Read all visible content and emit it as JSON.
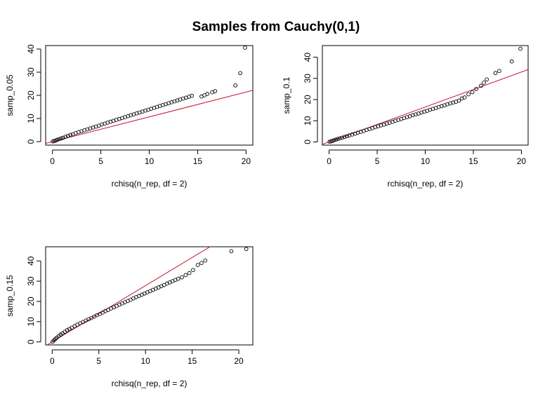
{
  "title": "Samples from Cauchy(0,1)",
  "colors": {
    "points": "#000000",
    "line": "#c8102e",
    "frame": "#000000"
  },
  "chart_data": [
    {
      "type": "scatter",
      "xlabel": "rchisq(n_rep, df = 2)",
      "ylabel": "samp_0.05",
      "xlim": [
        -0.7,
        20.7
      ],
      "ylim": [
        -1.5,
        41.5
      ],
      "xticks": [
        0,
        5,
        10,
        15,
        20
      ],
      "yticks": [
        0,
        10,
        20,
        30,
        40
      ],
      "points_x": [
        0.05,
        0.2,
        0.35,
        0.5,
        0.7,
        0.9,
        1.1,
        1.35,
        1.6,
        1.85,
        2.1,
        2.4,
        2.7,
        3.0,
        3.3,
        3.6,
        3.9,
        4.2,
        4.5,
        4.8,
        5.1,
        5.4,
        5.7,
        6.0,
        6.3,
        6.6,
        6.9,
        7.2,
        7.5,
        7.8,
        8.1,
        8.4,
        8.7,
        9.0,
        9.3,
        9.6,
        9.9,
        10.2,
        10.5,
        10.8,
        11.1,
        11.4,
        11.7,
        12.0,
        12.3,
        12.6,
        12.9,
        13.2,
        13.5,
        13.8,
        14.1,
        14.4,
        15.4,
        15.7,
        16.0,
        16.5,
        16.8,
        18.9,
        19.4,
        19.9
      ],
      "points_y": [
        0.1,
        0.3,
        0.5,
        0.8,
        1.1,
        1.4,
        1.7,
        2.1,
        2.5,
        2.9,
        3.2,
        3.7,
        4.1,
        4.5,
        4.9,
        5.3,
        5.7,
        6.1,
        6.5,
        6.9,
        7.4,
        7.8,
        8.2,
        8.6,
        9.0,
        9.4,
        9.8,
        10.2,
        10.6,
        11.0,
        11.4,
        11.8,
        12.2,
        12.6,
        13.0,
        13.4,
        13.8,
        14.2,
        14.6,
        15.0,
        15.4,
        15.8,
        16.2,
        16.6,
        17.0,
        17.4,
        17.8,
        18.2,
        18.6,
        19.0,
        19.4,
        19.8,
        19.5,
        20.0,
        20.6,
        21.3,
        21.8,
        24.3,
        29.6,
        40.6
      ],
      "ref_line": {
        "intercept": 0,
        "slope": 1.07
      }
    },
    {
      "type": "scatter",
      "xlabel": "rchisq(n_rep, df = 2)",
      "ylabel": "samp_0.1",
      "xlim": [
        -0.7,
        20.7
      ],
      "ylim": [
        -1.5,
        45.5
      ],
      "xticks": [
        0,
        5,
        10,
        15,
        20
      ],
      "yticks": [
        0,
        10,
        20,
        30,
        40
      ],
      "points_x": [
        0.05,
        0.2,
        0.35,
        0.5,
        0.7,
        0.9,
        1.1,
        1.35,
        1.6,
        1.85,
        2.1,
        2.4,
        2.7,
        3.0,
        3.3,
        3.6,
        3.9,
        4.2,
        4.5,
        4.8,
        5.1,
        5.4,
        5.7,
        6.0,
        6.3,
        6.6,
        6.9,
        7.2,
        7.5,
        7.8,
        8.1,
        8.4,
        8.7,
        9.0,
        9.3,
        9.6,
        9.9,
        10.2,
        10.5,
        10.8,
        11.1,
        11.4,
        11.7,
        12.0,
        12.3,
        12.6,
        12.9,
        13.2,
        13.5,
        13.8,
        14.1,
        14.5,
        14.9,
        15.3,
        15.8,
        16.1,
        16.4,
        17.3,
        17.7,
        19.0,
        19.9
      ],
      "points_y": [
        0.1,
        0.3,
        0.5,
        0.8,
        1.1,
        1.4,
        1.7,
        2.0,
        2.4,
        2.7,
        3.1,
        3.5,
        3.9,
        4.4,
        4.8,
        5.2,
        5.7,
        6.1,
        6.5,
        7.0,
        7.4,
        7.8,
        8.2,
        8.7,
        9.1,
        9.5,
        10.0,
        10.4,
        10.8,
        11.3,
        11.7,
        12.1,
        12.6,
        13.0,
        13.4,
        13.9,
        14.3,
        14.7,
        15.2,
        15.6,
        16.0,
        16.5,
        16.9,
        17.3,
        17.8,
        18.2,
        18.6,
        19.0,
        19.5,
        20.5,
        21.0,
        22.5,
        23.5,
        25.0,
        26.5,
        28.0,
        29.5,
        32.5,
        33.5,
        38.0,
        44.0
      ],
      "ref_line": {
        "intercept": 0,
        "slope": 1.65
      }
    },
    {
      "type": "scatter",
      "xlabel": "rchisq(n_rep, df = 2)",
      "ylabel": "samp_0.15",
      "xlim": [
        -0.7,
        21.5
      ],
      "ylim": [
        -1.5,
        47.0
      ],
      "xticks": [
        0,
        5,
        10,
        15,
        20
      ],
      "yticks": [
        0,
        10,
        20,
        30,
        40
      ],
      "points_x": [
        0.05,
        0.2,
        0.35,
        0.5,
        0.7,
        0.9,
        1.1,
        1.35,
        1.6,
        1.85,
        2.1,
        2.4,
        2.7,
        3.0,
        3.3,
        3.6,
        3.9,
        4.2,
        4.5,
        4.8,
        5.1,
        5.4,
        5.7,
        6.0,
        6.3,
        6.6,
        6.9,
        7.2,
        7.5,
        7.8,
        8.1,
        8.4,
        8.7,
        9.0,
        9.3,
        9.6,
        9.9,
        10.2,
        10.5,
        10.8,
        11.1,
        11.4,
        11.7,
        12.0,
        12.3,
        12.6,
        12.9,
        13.2,
        13.5,
        13.9,
        14.3,
        14.7,
        15.1,
        15.6,
        16.0,
        16.4,
        19.2,
        20.8
      ],
      "points_y": [
        0.1,
        0.8,
        1.5,
        2.1,
        2.9,
        3.6,
        4.2,
        5.0,
        5.8,
        6.4,
        7.0,
        7.8,
        8.5,
        9.2,
        9.8,
        10.5,
        11.2,
        11.8,
        12.5,
        13.2,
        13.8,
        14.5,
        15.2,
        15.8,
        16.5,
        17.1,
        17.7,
        18.4,
        19.0,
        19.6,
        20.2,
        20.8,
        21.5,
        22.1,
        22.7,
        23.3,
        23.9,
        24.5,
        25.1,
        25.7,
        26.3,
        26.9,
        27.5,
        28.1,
        28.8,
        29.4,
        30.0,
        30.6,
        31.2,
        31.9,
        33.0,
        34.0,
        35.5,
        38.0,
        39.0,
        40.2,
        44.8,
        45.9
      ],
      "ref_line": {
        "intercept": 0,
        "slope": 2.78
      }
    }
  ]
}
